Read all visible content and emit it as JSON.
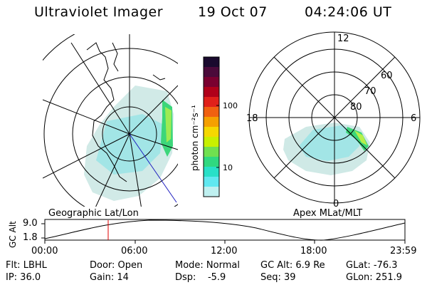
{
  "header": {
    "instrument": "Ultraviolet Imager",
    "date": "19 Oct 07",
    "time": "04:24:06 UT"
  },
  "colorbar": {
    "label": "photon cm⁻²s⁻¹",
    "ticks": [
      "100",
      "10"
    ],
    "colors": [
      "#1a0a2e",
      "#4b0a3a",
      "#7a0030",
      "#b0001a",
      "#e0201a",
      "#f06010",
      "#f5a000",
      "#f5d800",
      "#c8f000",
      "#70e050",
      "#30d880",
      "#28e0c8",
      "#60e8f0",
      "#bff0f0"
    ]
  },
  "geo_panel": {
    "label": "Geographic Lat/Lon"
  },
  "apex_panel": {
    "label": "Apex MLat/MLT",
    "mlt_labels": [
      "12",
      "18",
      "6",
      "0"
    ],
    "lat_labels": [
      "60",
      "70",
      "80"
    ]
  },
  "altitude_plot": {
    "ylabel": "GC Alt",
    "yticks": [
      "9.0",
      "1.8"
    ],
    "xticks": [
      "00:00",
      "06:00",
      "12:00",
      "18:00",
      "23:59"
    ]
  },
  "info": {
    "filter": "Flt: LBHL",
    "ip": "IP: 36.0",
    "door": "Door: Open",
    "gain": "Gain: 14",
    "mode": "Mode: Normal",
    "dsp": "Dsp:    -5.9",
    "gc_alt": "GC Alt: 6.9 Re",
    "seq": "Seq: 39",
    "glat": "GLat: -76.3",
    "glon": "GLon: 251.9"
  }
}
